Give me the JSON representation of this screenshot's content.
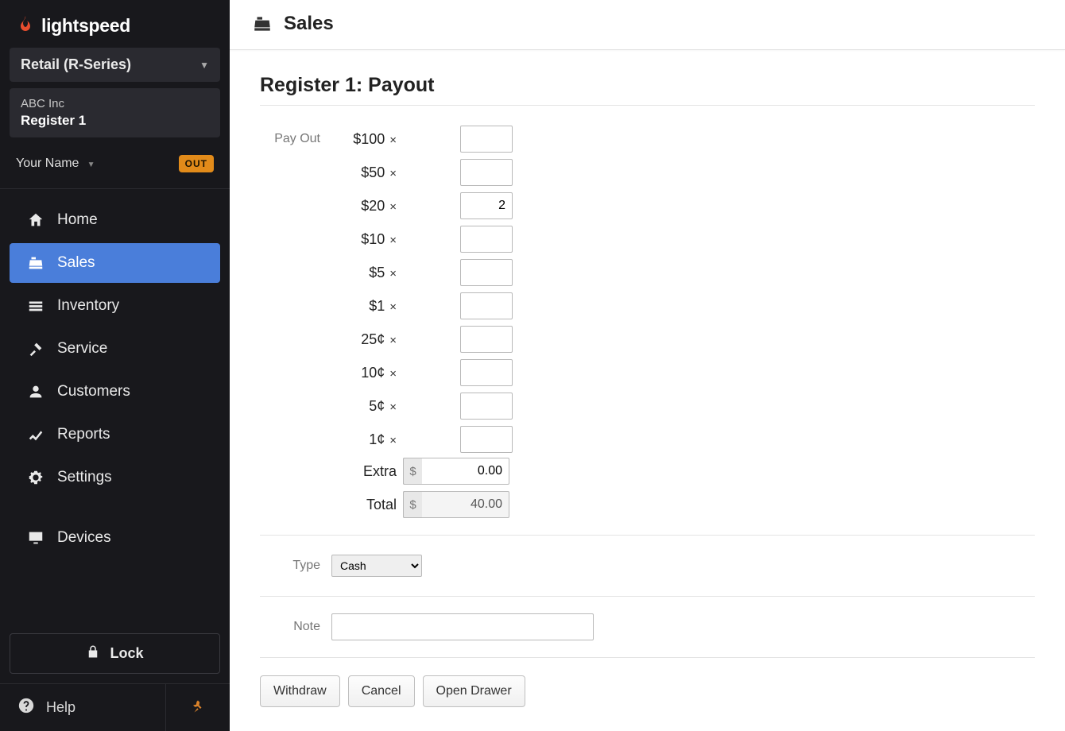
{
  "brand": "lightspeed",
  "context": {
    "product": "Retail (R-Series)",
    "company": "ABC Inc",
    "register": "Register 1"
  },
  "user": {
    "name": "Your Name",
    "out_badge": "OUT"
  },
  "nav": {
    "home": "Home",
    "sales": "Sales",
    "inventory": "Inventory",
    "service": "Service",
    "customers": "Customers",
    "reports": "Reports",
    "settings": "Settings",
    "devices": "Devices",
    "lock": "Lock",
    "help": "Help"
  },
  "header": {
    "title": "Sales"
  },
  "page": {
    "title": "Register 1: Payout"
  },
  "payout": {
    "section_label": "Pay Out",
    "denominations": [
      {
        "label": "$100",
        "value": ""
      },
      {
        "label": "$50",
        "value": ""
      },
      {
        "label": "$20",
        "value": "2"
      },
      {
        "label": "$10",
        "value": ""
      },
      {
        "label": "$5",
        "value": ""
      },
      {
        "label": "$1",
        "value": ""
      },
      {
        "label": "25¢",
        "value": ""
      },
      {
        "label": "10¢",
        "value": ""
      },
      {
        "label": "5¢",
        "value": ""
      },
      {
        "label": "1¢",
        "value": ""
      }
    ],
    "extra_label": "Extra",
    "extra_value": "0.00",
    "total_label": "Total",
    "total_value": "40.00"
  },
  "type": {
    "label": "Type",
    "selected": "Cash",
    "options": [
      "Cash"
    ]
  },
  "note": {
    "label": "Note",
    "value": ""
  },
  "buttons": {
    "withdraw": "Withdraw",
    "cancel": "Cancel",
    "open_drawer": "Open Drawer"
  },
  "colors": {
    "sidebar_bg": "#18181c",
    "active_nav": "#4a7eda",
    "out_badge": "#e28b1a",
    "pin": "#d9822b",
    "border": "#e4e4e4"
  }
}
